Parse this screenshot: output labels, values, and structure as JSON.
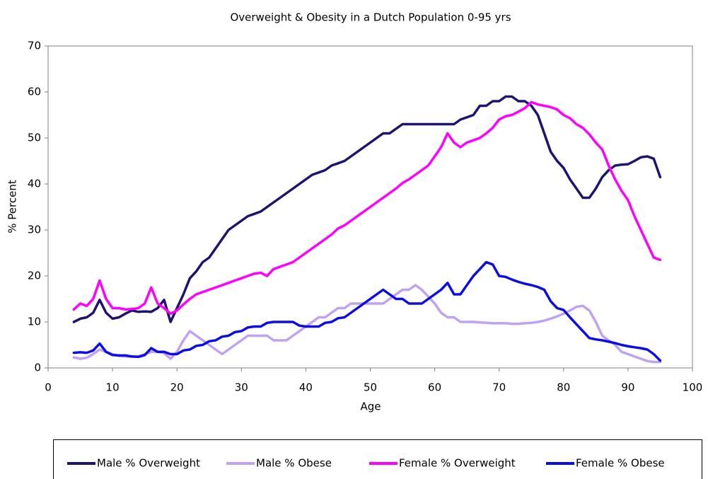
{
  "chart_data": {
    "type": "line",
    "title": "Overweight & Obesity in a Dutch Population 0-95 yrs",
    "x_label": "Age",
    "y_label": "% Percent",
    "xlim": [
      0,
      100
    ],
    "xticks": [
      0,
      10,
      20,
      30,
      40,
      50,
      60,
      70,
      80,
      90,
      100
    ],
    "ylim": [
      0,
      70
    ],
    "yticks": [
      0,
      10,
      20,
      30,
      40,
      50,
      60,
      70
    ],
    "grid": false,
    "legend": "bottom",
    "x": [
      4,
      5,
      6,
      7,
      8,
      9,
      10,
      11,
      12,
      13,
      14,
      15,
      16,
      17,
      18,
      19,
      20,
      21,
      22,
      23,
      24,
      25,
      26,
      27,
      28,
      29,
      30,
      31,
      32,
      33,
      34,
      35,
      36,
      37,
      38,
      39,
      40,
      41,
      42,
      43,
      44,
      45,
      46,
      47,
      48,
      49,
      50,
      51,
      52,
      53,
      54,
      55,
      56,
      57,
      58,
      59,
      60,
      61,
      62,
      63,
      64,
      65,
      66,
      67,
      68,
      69,
      70,
      71,
      72,
      73,
      74,
      75,
      76,
      77,
      78,
      79,
      80,
      81,
      82,
      83,
      84,
      85,
      86,
      87,
      88,
      89,
      90,
      91,
      92,
      93,
      94,
      95
    ],
    "series": [
      {
        "name": "Male % Overweight",
        "color": "#1c1470",
        "values": [
          10,
          10.7,
          11,
          12,
          14.8,
          12,
          10.7,
          11,
          11.8,
          12.5,
          12.2,
          12.3,
          12.2,
          13,
          14.8,
          10,
          13,
          16,
          19.5,
          21,
          23,
          24,
          26,
          28,
          30,
          31,
          32,
          33,
          33.5,
          34,
          35,
          36,
          37,
          38,
          39,
          40,
          41,
          42,
          42.5,
          43,
          44,
          44.5,
          45,
          46,
          47,
          48,
          49,
          50,
          51,
          51,
          52,
          53,
          53,
          53,
          53,
          53,
          53,
          53,
          53,
          53,
          54,
          54.5,
          55,
          57,
          57,
          58,
          58,
          59,
          59,
          58,
          58,
          57,
          55,
          51,
          47,
          45,
          43.5,
          41,
          39,
          37,
          37,
          39,
          41.5,
          43,
          44,
          44.2,
          44.3,
          45,
          45.8,
          46,
          45.5,
          41.5
        ]
      },
      {
        "name": "Male % Obese",
        "color": "#c0a2f2",
        "values": [
          2.3,
          2,
          2.2,
          3,
          4,
          3.5,
          3,
          2.6,
          2.5,
          2.4,
          2.5,
          3,
          3.5,
          3.5,
          3.2,
          2,
          3.5,
          6,
          8,
          7,
          6,
          5,
          4,
          3,
          4,
          5,
          6,
          7,
          7,
          7,
          7,
          6,
          6,
          6,
          7,
          8,
          9,
          10,
          11,
          11,
          12,
          13,
          13,
          14,
          14,
          14,
          14,
          14,
          14,
          15,
          16,
          17,
          17,
          18,
          17,
          15.5,
          14,
          12,
          11,
          11,
          10,
          10,
          10,
          9.9,
          9.8,
          9.7,
          9.7,
          9.7,
          9.6,
          9.6,
          9.7,
          9.8,
          10,
          10.3,
          10.7,
          11.2,
          11.8,
          12.5,
          13.3,
          13.5,
          12.5,
          10,
          7,
          6,
          5,
          3.5,
          3,
          2.5,
          2,
          1.5,
          1.3,
          1.3
        ]
      },
      {
        "name": "Female % Overweight",
        "color": "#ff00ff",
        "values": [
          12.7,
          14,
          13.5,
          15,
          19,
          15,
          13,
          13,
          12.7,
          12.8,
          13,
          14,
          17.5,
          14,
          13,
          11.8,
          12.5,
          13.8,
          15,
          16,
          16.5,
          17,
          17.5,
          18,
          18.5,
          19,
          19.5,
          20,
          20.5,
          20.7,
          20,
          21.5,
          22,
          22.5,
          23,
          24,
          25,
          26,
          27,
          28,
          29,
          30.3,
          31,
          32,
          33,
          34,
          35,
          36,
          37,
          38,
          39,
          40.2,
          41,
          42,
          43,
          44,
          46,
          48,
          51,
          49,
          48,
          49,
          49.5,
          50,
          51,
          52.2,
          54,
          54.7,
          55,
          55.7,
          56.5,
          57.8,
          57.3,
          57,
          56.7,
          56.2,
          55,
          54.3,
          53,
          52.2,
          50.8,
          49,
          47.5,
          44,
          41,
          38.5,
          36.5,
          33,
          30,
          27,
          24,
          23.5
        ]
      },
      {
        "name": "Female % Obese",
        "color": "#0c0ce6",
        "values": [
          3.3,
          3.4,
          3.3,
          3.8,
          5.3,
          3.5,
          2.8,
          2.7,
          2.7,
          2.5,
          2.4,
          2.8,
          4.3,
          3.5,
          3.5,
          3,
          3,
          3.8,
          4,
          4.8,
          5,
          5.8,
          6,
          6.8,
          7,
          7.8,
          8,
          8.8,
          9,
          9,
          9.8,
          10,
          10,
          10,
          10,
          9.2,
          9,
          9,
          9,
          9.8,
          10,
          10.8,
          11,
          12,
          13,
          14,
          15,
          16,
          17,
          16,
          15,
          15,
          14,
          14,
          14,
          15,
          16,
          17,
          18.5,
          16,
          16,
          18,
          20,
          21.5,
          23,
          22.5,
          20,
          19.8,
          19.2,
          18.7,
          18.3,
          18,
          17.6,
          17,
          14.5,
          13,
          12.6,
          11,
          9.5,
          8,
          6.5,
          6.2,
          6,
          5.7,
          5.4,
          5,
          4.7,
          4.5,
          4.3,
          4,
          3,
          1.6
        ]
      }
    ]
  }
}
